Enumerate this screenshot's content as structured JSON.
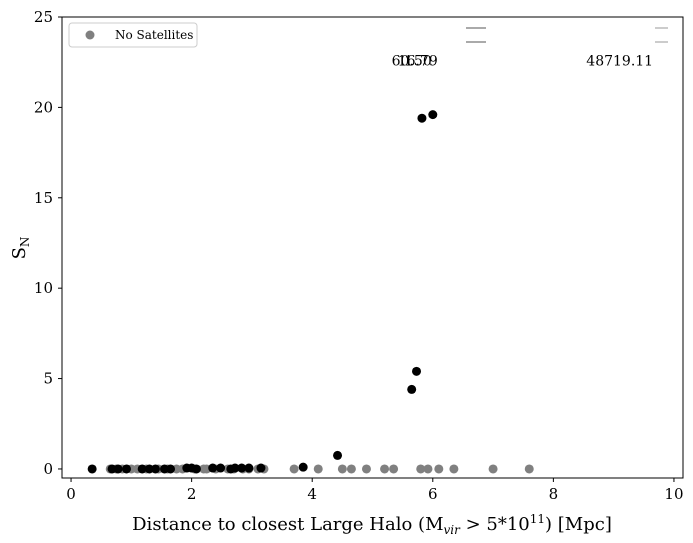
{
  "chart_data": {
    "type": "scatter",
    "title": "",
    "xlabel": "Distance to closest Large Halo (M",
    "xlabel_sub": "vir",
    "xlabel_mid": " > 5*10",
    "xlabel_sup": "11",
    "xlabel_end": ") [Mpc]",
    "ylabel": "S",
    "ylabel_sub": "N",
    "xlim": [
      -0.15,
      10.15
    ],
    "ylim": [
      -0.5,
      25
    ],
    "xticks": [
      0,
      2,
      4,
      6,
      8,
      10
    ],
    "yticks": [
      0,
      5,
      10,
      15,
      20,
      25
    ],
    "grid": false,
    "legend": {
      "placement": "top-left",
      "entries": [
        {
          "label": "No Satellites",
          "color": "#808080"
        }
      ]
    },
    "colors": {
      "no_satellites": "#808080",
      "with_satellites": "#000000"
    },
    "series": [
      {
        "name": "No Satellites",
        "color": "#808080",
        "points": [
          [
            0.65,
            0
          ],
          [
            0.75,
            0
          ],
          [
            0.85,
            0
          ],
          [
            1.0,
            0
          ],
          [
            1.1,
            0
          ],
          [
            1.25,
            0
          ],
          [
            1.45,
            0
          ],
          [
            1.6,
            0
          ],
          [
            1.75,
            0
          ],
          [
            1.85,
            0
          ],
          [
            2.05,
            0
          ],
          [
            2.2,
            0
          ],
          [
            2.25,
            0
          ],
          [
            2.4,
            0
          ],
          [
            2.6,
            0
          ],
          [
            2.7,
            0
          ],
          [
            2.85,
            0
          ],
          [
            2.95,
            0
          ],
          [
            3.1,
            0
          ],
          [
            3.2,
            0
          ],
          [
            3.7,
            0
          ],
          [
            4.1,
            0
          ],
          [
            4.5,
            0
          ],
          [
            4.65,
            0
          ],
          [
            4.9,
            0
          ],
          [
            5.2,
            0
          ],
          [
            5.35,
            0
          ],
          [
            5.8,
            0
          ],
          [
            5.92,
            0
          ],
          [
            6.1,
            0
          ],
          [
            6.35,
            0
          ],
          [
            7.0,
            0
          ],
          [
            7.6,
            0
          ]
        ]
      },
      {
        "color": "#000000",
        "points": [
          [
            0.35,
            0
          ],
          [
            0.68,
            0
          ],
          [
            0.78,
            0
          ],
          [
            0.92,
            0
          ],
          [
            1.18,
            0
          ],
          [
            1.3,
            0
          ],
          [
            1.4,
            0
          ],
          [
            1.55,
            0
          ],
          [
            1.65,
            0
          ],
          [
            1.92,
            0.05
          ],
          [
            2.0,
            0.05
          ],
          [
            2.08,
            0
          ],
          [
            2.35,
            0.05
          ],
          [
            2.48,
            0.05
          ],
          [
            2.65,
            0
          ],
          [
            2.72,
            0.05
          ],
          [
            2.83,
            0.05
          ],
          [
            2.95,
            0.05
          ],
          [
            3.15,
            0.05
          ],
          [
            3.85,
            0.1
          ],
          [
            4.42,
            0.75
          ],
          [
            5.65,
            4.4
          ],
          [
            5.73,
            5.4
          ],
          [
            5.82,
            19.4
          ],
          [
            6.0,
            19.6
          ]
        ]
      }
    ],
    "annotations": [
      {
        "text": "1",
        "x": 5.6,
        "y": 22.6
      },
      {
        "text": "16.79",
        "x": 5.75,
        "y": 22.6
      },
      {
        "text": "60.50",
        "x": 5.65,
        "y": 22.6
      },
      {
        "text": "48719.11",
        "x": 9.1,
        "y": 22.6
      }
    ]
  }
}
